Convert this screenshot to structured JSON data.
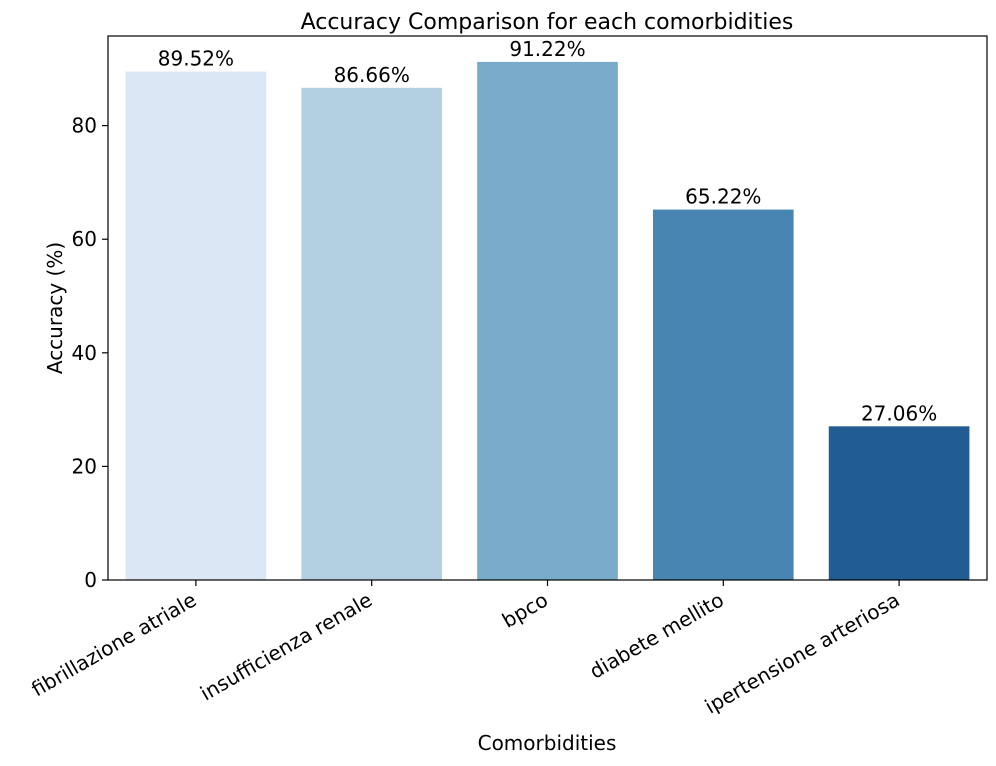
{
  "chart_data": {
    "type": "bar",
    "title": "Accuracy Comparison for each comorbidities",
    "xlabel": "Comorbidities",
    "ylabel": "Accuracy (%)",
    "categories": [
      "fibrillazione atriale",
      "insufficienza renale",
      "bpco",
      "diabete mellito",
      "ipertensione arteriosa"
    ],
    "values": [
      89.52,
      86.66,
      91.22,
      65.22,
      27.06
    ],
    "data_labels": [
      "89.52%",
      "86.66%",
      "91.22%",
      "65.22%",
      "27.06%"
    ],
    "colors": [
      "#dbe7f4",
      "#b3cfe2",
      "#78aac9",
      "#4985b2",
      "#215d93"
    ],
    "ylim": [
      0,
      95.78
    ],
    "yticks": [
      0,
      20,
      40,
      60,
      80
    ],
    "ytick_labels": [
      "0",
      "20",
      "40",
      "60",
      "80"
    ],
    "grid": false,
    "legend": "none"
  }
}
